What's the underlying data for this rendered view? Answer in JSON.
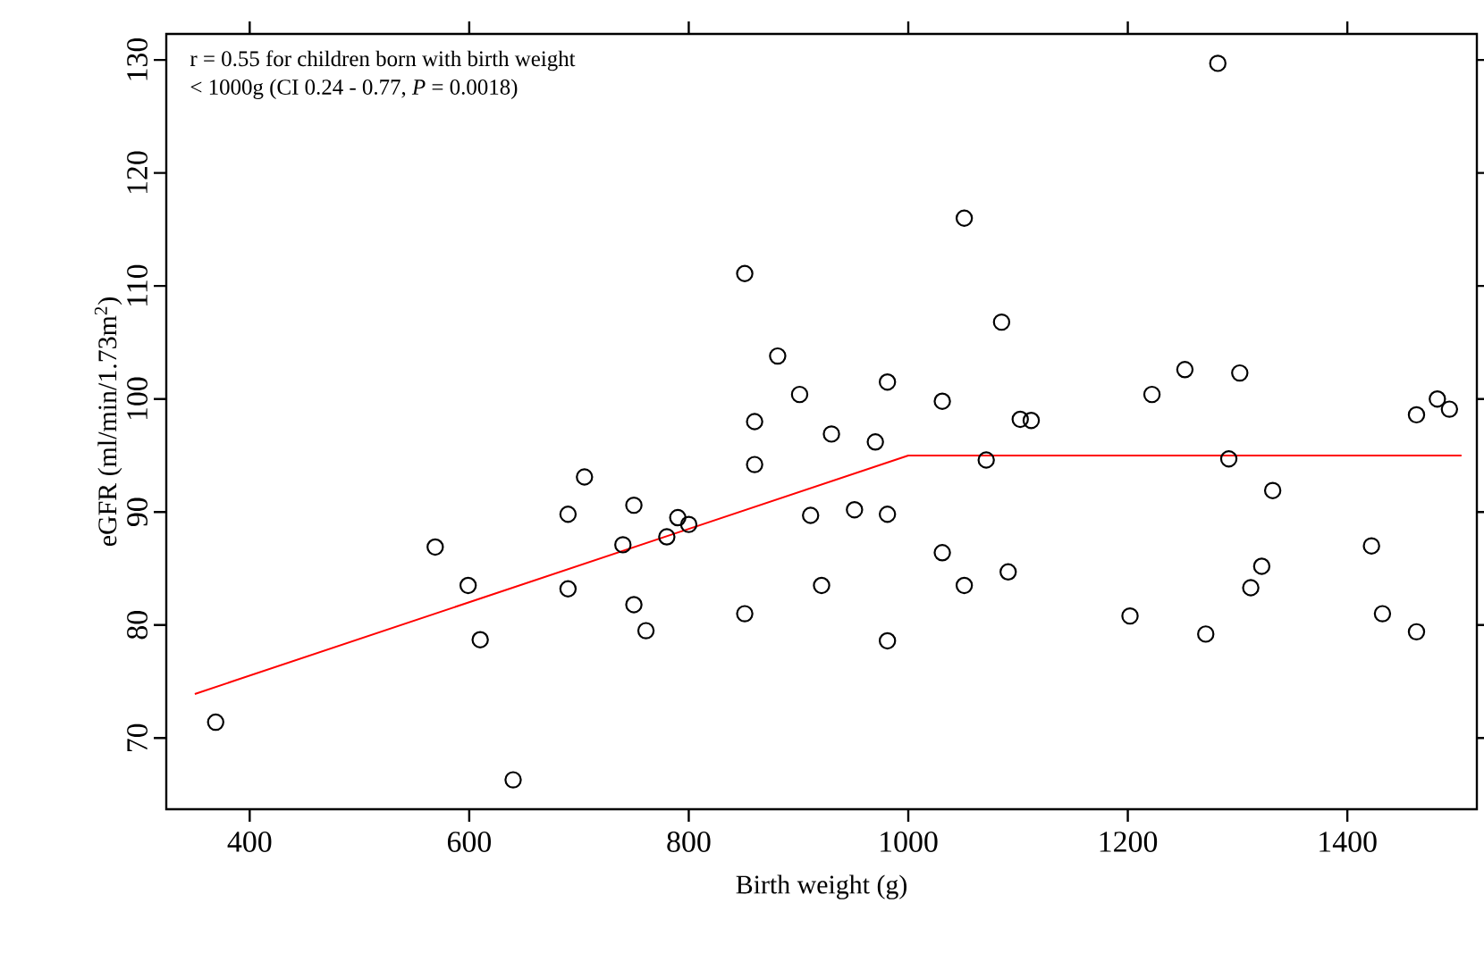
{
  "chart_data": {
    "type": "scatter",
    "xlabel": "Birth weight (g)",
    "ylabel": "eGFR (ml/min/1.73m$^{2}$)",
    "annotations": [
      "r = 0.55 for children born with birth weight",
      "< 1000g (CI 0.24 - 0.77, *P* = 0.0018)"
    ],
    "xlim": [
      324,
      1518
    ],
    "ylim": [
      63.7,
      132.3
    ],
    "xticks": [
      400,
      600,
      800,
      1000,
      1200,
      1400
    ],
    "yticks": [
      70,
      80,
      90,
      100,
      110,
      120,
      130
    ],
    "marker": "circle",
    "grid": false,
    "series": [
      {
        "color": "#000000",
        "x": [
          369,
          569,
          599,
          610,
          640,
          690,
          690,
          705,
          740,
          750,
          750,
          761,
          780,
          790,
          800,
          851,
          851,
          860,
          860,
          881,
          901,
          911,
          921,
          930,
          951,
          970,
          981,
          981,
          981,
          1031,
          1031,
          1051,
          1051,
          1071,
          1085,
          1091,
          1102,
          1112,
          1202,
          1222,
          1252,
          1271,
          1282,
          1292,
          1302,
          1312,
          1322,
          1332,
          1422,
          1432,
          1463,
          1463,
          1482,
          1493
        ],
        "values": [
          71.4,
          86.9,
          83.5,
          78.7,
          66.3,
          89.8,
          83.2,
          93.1,
          87.1,
          90.6,
          81.8,
          79.5,
          87.8,
          89.5,
          88.9,
          111.1,
          81.0,
          98.0,
          94.2,
          103.8,
          100.4,
          89.7,
          83.5,
          96.9,
          90.2,
          96.2,
          101.5,
          89.8,
          78.6,
          99.8,
          86.4,
          116.0,
          83.5,
          94.6,
          106.8,
          84.7,
          98.2,
          98.1,
          80.8,
          100.4,
          102.6,
          79.2,
          129.7,
          94.7,
          102.3,
          83.3,
          85.2,
          91.9,
          87.0,
          81.0,
          98.6,
          79.4,
          100.0,
          99.1
        ]
      },
      {
        "type": "line",
        "marker": "none",
        "color": "#ff0000",
        "x": [
          350,
          1000,
          1504
        ],
        "values": [
          73.9,
          95,
          95
        ]
      }
    ]
  }
}
